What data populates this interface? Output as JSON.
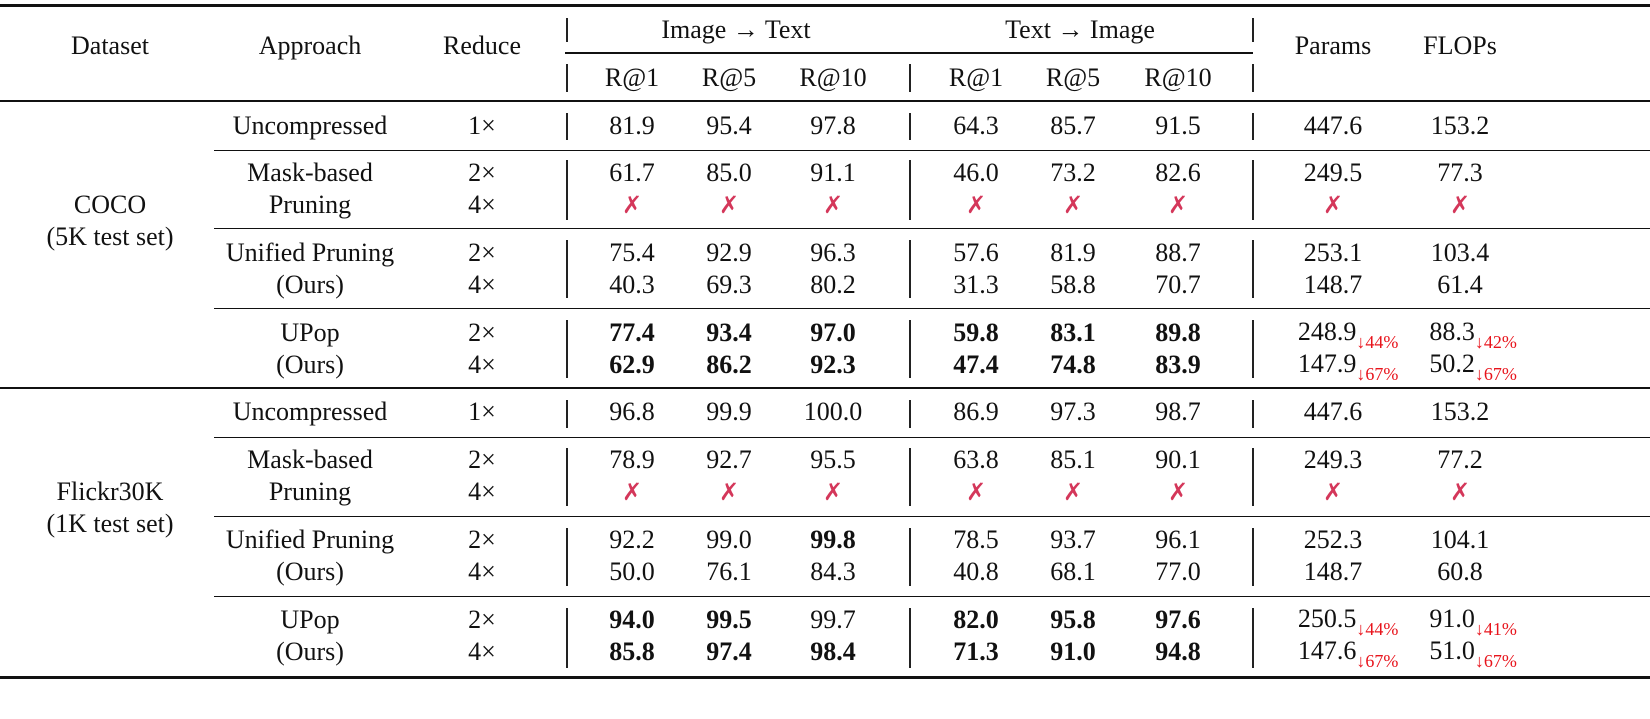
{
  "header": {
    "dataset": "Dataset",
    "approach": "Approach",
    "reduce": "Reduce",
    "group_i2t": "Image → Text",
    "group_t2i": "Text → Image",
    "params": "Params",
    "flops": "FLOPs",
    "metrics": [
      "R@1",
      "R@5",
      "R@10",
      "R@1",
      "R@5",
      "R@10"
    ]
  },
  "cross_symbol": "✗",
  "datasets": [
    {
      "name": [
        "COCO",
        "(5K test set)"
      ],
      "groups": [
        {
          "approach": [
            "Uncompressed"
          ],
          "rows": [
            {
              "reduce": "1×",
              "values": [
                "81.9",
                "95.4",
                "97.8",
                "64.3",
                "85.7",
                "91.5"
              ],
              "bold": [],
              "params": "447.6",
              "params_note": "",
              "flops": "153.2",
              "flops_note": ""
            }
          ]
        },
        {
          "approach": [
            "Mask-based",
            "Pruning"
          ],
          "rows": [
            {
              "reduce": "2×",
              "values": [
                "61.7",
                "85.0",
                "91.1",
                "46.0",
                "73.2",
                "82.6"
              ],
              "bold": [],
              "params": "249.5",
              "params_note": "",
              "flops": "77.3",
              "flops_note": ""
            },
            {
              "reduce": "4×",
              "values": [
                "✗",
                "✗",
                "✗",
                "✗",
                "✗",
                "✗"
              ],
              "bold": [],
              "params": "✗",
              "params_note": "",
              "flops": "✗",
              "flops_note": ""
            }
          ]
        },
        {
          "approach": [
            "Unified Pruning",
            "(Ours)"
          ],
          "rows": [
            {
              "reduce": "2×",
              "values": [
                "75.4",
                "92.9",
                "96.3",
                "57.6",
                "81.9",
                "88.7"
              ],
              "bold": [],
              "params": "253.1",
              "params_note": "",
              "flops": "103.4",
              "flops_note": ""
            },
            {
              "reduce": "4×",
              "values": [
                "40.3",
                "69.3",
                "80.2",
                "31.3",
                "58.8",
                "70.7"
              ],
              "bold": [],
              "params": "148.7",
              "params_note": "",
              "flops": "61.4",
              "flops_note": ""
            }
          ]
        },
        {
          "approach": [
            "UPop",
            "(Ours)"
          ],
          "rows": [
            {
              "reduce": "2×",
              "values": [
                "77.4",
                "93.4",
                "97.0",
                "59.8",
                "83.1",
                "89.8"
              ],
              "bold": [
                0,
                1,
                2,
                3,
                4,
                5
              ],
              "params": "248.9",
              "params_note": "↓44%",
              "flops": "88.3",
              "flops_note": "↓42%"
            },
            {
              "reduce": "4×",
              "values": [
                "62.9",
                "86.2",
                "92.3",
                "47.4",
                "74.8",
                "83.9"
              ],
              "bold": [
                0,
                1,
                2,
                3,
                4,
                5
              ],
              "params": "147.9",
              "params_note": "↓67%",
              "flops": "50.2",
              "flops_note": "↓67%"
            }
          ]
        }
      ]
    },
    {
      "name": [
        "Flickr30K",
        "(1K test set)"
      ],
      "groups": [
        {
          "approach": [
            "Uncompressed"
          ],
          "rows": [
            {
              "reduce": "1×",
              "values": [
                "96.8",
                "99.9",
                "100.0",
                "86.9",
                "97.3",
                "98.7"
              ],
              "bold": [],
              "params": "447.6",
              "params_note": "",
              "flops": "153.2",
              "flops_note": ""
            }
          ]
        },
        {
          "approach": [
            "Mask-based",
            "Pruning"
          ],
          "rows": [
            {
              "reduce": "2×",
              "values": [
                "78.9",
                "92.7",
                "95.5",
                "63.8",
                "85.1",
                "90.1"
              ],
              "bold": [],
              "params": "249.3",
              "params_note": "",
              "flops": "77.2",
              "flops_note": ""
            },
            {
              "reduce": "4×",
              "values": [
                "✗",
                "✗",
                "✗",
                "✗",
                "✗",
                "✗"
              ],
              "bold": [],
              "params": "✗",
              "params_note": "",
              "flops": "✗",
              "flops_note": ""
            }
          ]
        },
        {
          "approach": [
            "Unified Pruning",
            "(Ours)"
          ],
          "rows": [
            {
              "reduce": "2×",
              "values": [
                "92.2",
                "99.0",
                "99.8",
                "78.5",
                "93.7",
                "96.1"
              ],
              "bold": [
                2
              ],
              "params": "252.3",
              "params_note": "",
              "flops": "104.1",
              "flops_note": ""
            },
            {
              "reduce": "4×",
              "values": [
                "50.0",
                "76.1",
                "84.3",
                "40.8",
                "68.1",
                "77.0"
              ],
              "bold": [],
              "params": "148.7",
              "params_note": "",
              "flops": "60.8",
              "flops_note": ""
            }
          ]
        },
        {
          "approach": [
            "UPop",
            "(Ours)"
          ],
          "rows": [
            {
              "reduce": "2×",
              "values": [
                "94.0",
                "99.5",
                "99.7",
                "82.0",
                "95.8",
                "97.6"
              ],
              "bold": [
                0,
                1,
                3,
                4,
                5
              ],
              "params": "250.5",
              "params_note": "↓44%",
              "flops": "91.0",
              "flops_note": "↓41%"
            },
            {
              "reduce": "4×",
              "values": [
                "85.8",
                "97.4",
                "98.4",
                "71.3",
                "91.0",
                "94.8"
              ],
              "bold": [
                0,
                1,
                2,
                3,
                4,
                5
              ],
              "params": "147.6",
              "params_note": "↓67%",
              "flops": "51.0",
              "flops_note": "↓67%"
            }
          ]
        }
      ]
    }
  ]
}
